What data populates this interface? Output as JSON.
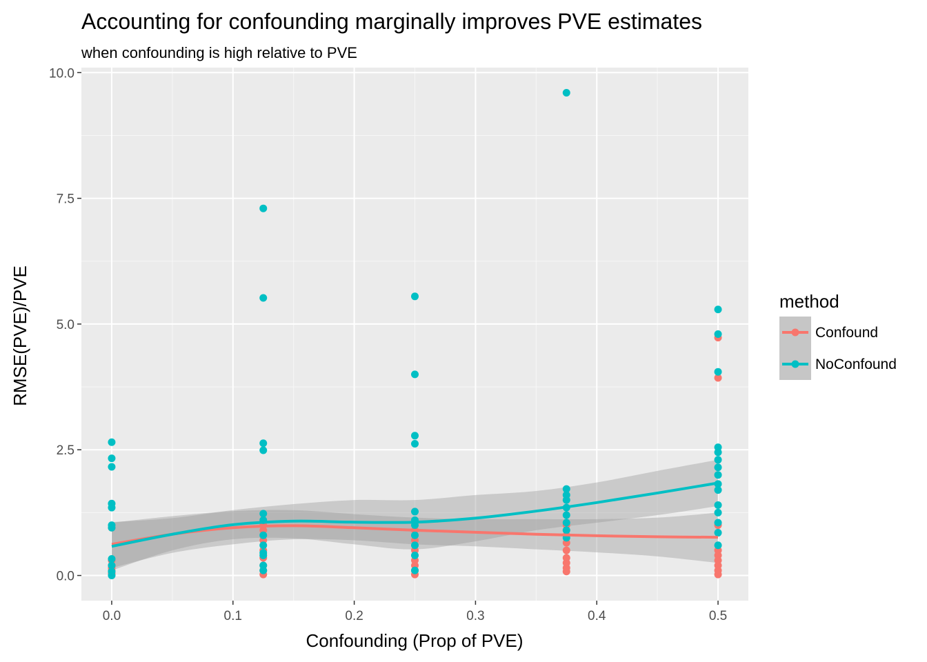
{
  "chart_data": {
    "type": "scatter",
    "title": "Accounting for confounding marginally improves PVE estimates",
    "subtitle": "when confounding is high relative to PVE",
    "xlabel": "Confounding (Prop of PVE)",
    "ylabel": "RMSE(PVE)/PVE",
    "xlim": [
      -0.025,
      0.525
    ],
    "ylim": [
      -0.5,
      10.1
    ],
    "x_ticks": [
      0.0,
      0.1,
      0.2,
      0.3,
      0.4,
      0.5
    ],
    "x_tick_labels": [
      "0.0",
      "0.1",
      "0.2",
      "0.3",
      "0.4",
      "0.5"
    ],
    "y_ticks": [
      0.0,
      2.5,
      5.0,
      7.5,
      10.0
    ],
    "y_tick_labels": [
      "0.0",
      "2.5",
      "5.0",
      "7.5",
      "10.0"
    ],
    "grid": true,
    "legend": {
      "title": "method",
      "position": "right"
    },
    "series": [
      {
        "name": "Confound",
        "color": "#F8766D",
        "points": [
          [
            0,
            0.02
          ],
          [
            0,
            0.05
          ],
          [
            0,
            0.1
          ],
          [
            0,
            0.15
          ],
          [
            0,
            0.2
          ],
          [
            0,
            0.3
          ],
          [
            0,
            0.95
          ],
          [
            0.125,
            0.02
          ],
          [
            0.125,
            0.1
          ],
          [
            0.125,
            0.2
          ],
          [
            0.125,
            0.35
          ],
          [
            0.125,
            0.5
          ],
          [
            0.125,
            0.7
          ],
          [
            0.125,
            0.9
          ],
          [
            0.125,
            1.0
          ],
          [
            0.25,
            0.02
          ],
          [
            0.25,
            0.1
          ],
          [
            0.25,
            0.2
          ],
          [
            0.25,
            0.3
          ],
          [
            0.25,
            0.5
          ],
          [
            0.25,
            0.7
          ],
          [
            0.25,
            0.9
          ],
          [
            0.375,
            0.08
          ],
          [
            0.375,
            0.15
          ],
          [
            0.375,
            0.25
          ],
          [
            0.375,
            0.35
          ],
          [
            0.375,
            0.5
          ],
          [
            0.375,
            0.65
          ],
          [
            0.375,
            0.8
          ],
          [
            0.375,
            1.0
          ],
          [
            0.5,
            0.02
          ],
          [
            0.5,
            0.1
          ],
          [
            0.5,
            0.2
          ],
          [
            0.5,
            0.3
          ],
          [
            0.5,
            0.4
          ],
          [
            0.5,
            0.5
          ],
          [
            0.5,
            1.0
          ],
          [
            0.5,
            3.93
          ],
          [
            0.5,
            4.73
          ]
        ],
        "smooth": {
          "x": [
            0,
            0.05,
            0.1,
            0.15,
            0.2,
            0.25,
            0.3,
            0.35,
            0.4,
            0.45,
            0.5
          ],
          "y": [
            0.62,
            0.82,
            0.95,
            0.99,
            0.95,
            0.9,
            0.86,
            0.82,
            0.79,
            0.77,
            0.76
          ],
          "lower": [
            0.15,
            0.45,
            0.62,
            0.72,
            0.7,
            0.62,
            0.58,
            0.52,
            0.46,
            0.38,
            0.25
          ],
          "upper": [
            1.05,
            1.18,
            1.28,
            1.3,
            1.22,
            1.15,
            1.12,
            1.12,
            1.12,
            1.15,
            1.25
          ]
        }
      },
      {
        "name": "NoConfound",
        "color": "#00BFC4",
        "points": [
          [
            0,
            0.0
          ],
          [
            0,
            0.08
          ],
          [
            0,
            0.2
          ],
          [
            0,
            0.33
          ],
          [
            0,
            0.95
          ],
          [
            0,
            1.0
          ],
          [
            0,
            1.35
          ],
          [
            0,
            1.43
          ],
          [
            0,
            2.16
          ],
          [
            0,
            2.33
          ],
          [
            0,
            2.65
          ],
          [
            0.125,
            0.1
          ],
          [
            0.125,
            0.2
          ],
          [
            0.125,
            0.4
          ],
          [
            0.125,
            0.45
          ],
          [
            0.125,
            0.6
          ],
          [
            0.125,
            0.8
          ],
          [
            0.125,
            1.1
          ],
          [
            0.125,
            1.23
          ],
          [
            0.125,
            2.49
          ],
          [
            0.125,
            2.63
          ],
          [
            0.125,
            5.52
          ],
          [
            0.125,
            7.3
          ],
          [
            0.25,
            0.1
          ],
          [
            0.25,
            0.4
          ],
          [
            0.25,
            0.6
          ],
          [
            0.25,
            0.8
          ],
          [
            0.25,
            1.0
          ],
          [
            0.25,
            1.1
          ],
          [
            0.25,
            1.27
          ],
          [
            0.25,
            2.62
          ],
          [
            0.25,
            2.78
          ],
          [
            0.25,
            4.0
          ],
          [
            0.25,
            5.55
          ],
          [
            0.375,
            0.75
          ],
          [
            0.375,
            0.9
          ],
          [
            0.375,
            1.05
          ],
          [
            0.375,
            1.2
          ],
          [
            0.375,
            1.35
          ],
          [
            0.375,
            1.5
          ],
          [
            0.375,
            1.6
          ],
          [
            0.375,
            1.72
          ],
          [
            0.375,
            9.6
          ],
          [
            0.5,
            0.6
          ],
          [
            0.5,
            0.85
          ],
          [
            0.5,
            1.05
          ],
          [
            0.5,
            1.25
          ],
          [
            0.5,
            1.4
          ],
          [
            0.5,
            1.7
          ],
          [
            0.5,
            1.82
          ],
          [
            0.5,
            2.0
          ],
          [
            0.5,
            2.15
          ],
          [
            0.5,
            2.3
          ],
          [
            0.5,
            2.45
          ],
          [
            0.5,
            2.55
          ],
          [
            0.5,
            4.05
          ],
          [
            0.5,
            4.8
          ],
          [
            0.5,
            5.29
          ]
        ],
        "smooth": {
          "x": [
            0,
            0.05,
            0.1,
            0.15,
            0.2,
            0.25,
            0.3,
            0.35,
            0.4,
            0.45,
            0.5
          ],
          "y": [
            0.58,
            0.82,
            1.01,
            1.08,
            1.06,
            1.06,
            1.14,
            1.28,
            1.45,
            1.64,
            1.84
          ],
          "lower": [
            0.1,
            0.5,
            0.72,
            0.74,
            0.62,
            0.52,
            0.68,
            0.9,
            1.05,
            1.2,
            1.38
          ],
          "upper": [
            1.06,
            1.14,
            1.3,
            1.42,
            1.5,
            1.5,
            1.6,
            1.68,
            1.85,
            2.08,
            2.3
          ]
        }
      }
    ]
  }
}
